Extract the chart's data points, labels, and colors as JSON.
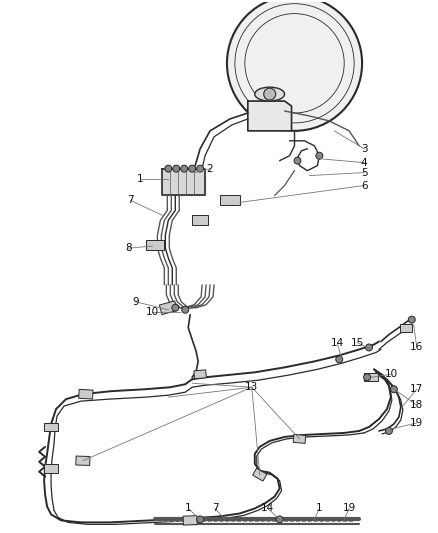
{
  "fig_width": 4.38,
  "fig_height": 5.33,
  "dpi": 100,
  "bg": "#ffffff",
  "lc": "#2a2a2a",
  "lc2": "#555555",
  "lc_light": "#888888"
}
